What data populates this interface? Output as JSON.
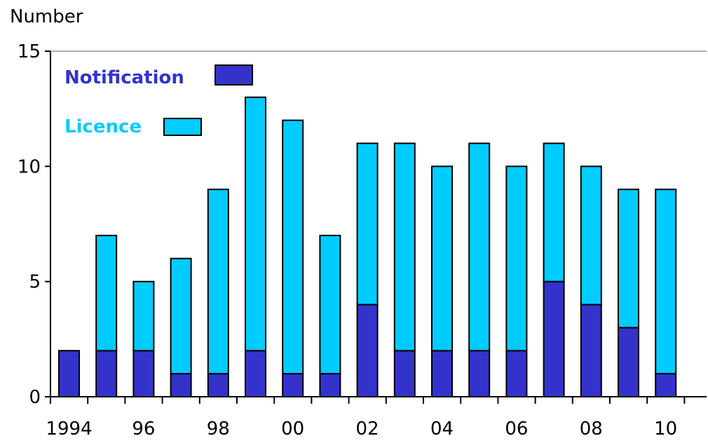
{
  "chart_data": {
    "type": "bar",
    "stacked": true,
    "ylabel": "Number",
    "xlabel": "",
    "ylim": [
      0,
      15
    ],
    "y_ticks": [
      0,
      5,
      10,
      15
    ],
    "categories": [
      "1994",
      "1995",
      "1996",
      "1997",
      "1998",
      "1999",
      "2000",
      "2001",
      "2002",
      "2003",
      "2004",
      "2005",
      "2006",
      "2007",
      "2008",
      "2009",
      "2010"
    ],
    "x_tick_labels": [
      "1994",
      "",
      "96",
      "",
      "98",
      "",
      "00",
      "",
      "02",
      "",
      "04",
      "",
      "06",
      "",
      "08",
      "",
      "10"
    ],
    "series": [
      {
        "name": "Notification",
        "color": "#3333cc",
        "values": [
          2,
          2,
          2,
          1,
          1,
          2,
          1,
          1,
          4,
          2,
          2,
          2,
          2,
          5,
          4,
          3,
          1
        ]
      },
      {
        "name": "Licence",
        "color": "#00ccff",
        "values": [
          0,
          5,
          3,
          5,
          8,
          11,
          11,
          6,
          7,
          9,
          8,
          9,
          8,
          6,
          6,
          6,
          8
        ]
      }
    ],
    "grid": false,
    "legend_position": "top-left"
  }
}
